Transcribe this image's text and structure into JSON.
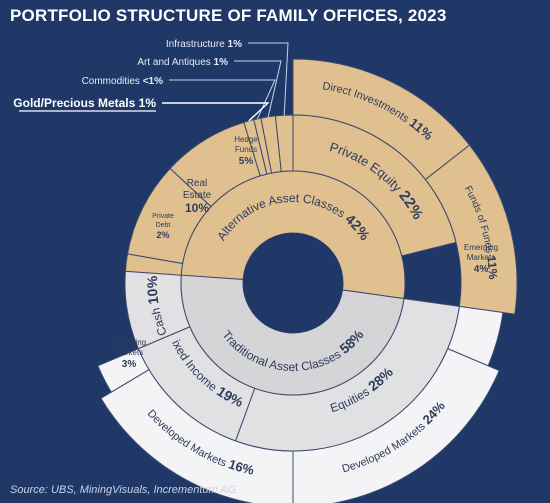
{
  "title": "PORTFOLIO STRUCTURE OF FAMILY OFFICES, 2023",
  "source": "Source: UBS, MiningVisuals, Incrementum AG",
  "colors": {
    "alternative": "#e0c08e",
    "traditional_inner": "#d5d5d7",
    "traditional_mid": "#e1e1e3",
    "traditional_outer": "#f4f4f6",
    "background": "#1f3868",
    "label_text": "#2f3c5c",
    "highlight": "#ffffff"
  },
  "chart_data": {
    "type": "sunburst",
    "rings": [
      {
        "ring": "inner",
        "segments": [
          {
            "name": "Alternative Asset Classes",
            "value": 42,
            "label": "42%",
            "group": "alternative"
          },
          {
            "name": "Traditional Asset Classes",
            "value": 58,
            "label": "58%",
            "group": "traditional"
          }
        ]
      },
      {
        "ring": "middle",
        "segments": [
          {
            "name": "Private Equity",
            "value": 22,
            "label": "22%",
            "group": "alternative"
          },
          {
            "name": "Traditional:Equities",
            "display": "Equities",
            "value": 28,
            "label": "28%",
            "group": "traditional"
          },
          {
            "name": "Fixed Income",
            "value": 19,
            "label": "19%",
            "group": "traditional"
          },
          {
            "name": "Cash",
            "value": 10,
            "label": "10%",
            "group": "traditional"
          },
          {
            "name": "Private Debt",
            "value": 2,
            "label": "2%",
            "group": "alternative"
          },
          {
            "name": "Real Estate",
            "value": 10,
            "label": "10%",
            "group": "alternative"
          },
          {
            "name": "Hedge Funds",
            "value": 5,
            "label": "5%",
            "group": "alternative"
          },
          {
            "name": "Gold/Precious Metals",
            "value": 1,
            "label": "1%",
            "group": "alternative"
          },
          {
            "name": "Commodities",
            "value": 0.5,
            "label": "<1%",
            "group": "alternative"
          },
          {
            "name": "Art and Antiques",
            "value": 1,
            "label": "1%",
            "group": "alternative"
          },
          {
            "name": "Infrastructure",
            "value": 1,
            "label": "1%",
            "group": "alternative"
          }
        ]
      },
      {
        "ring": "outer",
        "segments": [
          {
            "name": "Direct Investments",
            "value": 11,
            "label": "11%",
            "group": "alternative"
          },
          {
            "name": "Funds of Funds",
            "value": 11,
            "label": "11%",
            "group": "alternative"
          },
          {
            "name": "Emerging Markets (Equities)",
            "display": "Emerging Markets",
            "value": 4,
            "label": "4%",
            "group": "traditional"
          },
          {
            "name": "Developed Markets (Equities)",
            "display": "Developed Markets",
            "value": 24,
            "label": "24%",
            "group": "traditional"
          },
          {
            "name": "Developed Markets (Fixed Income)",
            "display": "Developed Markets",
            "value": 16,
            "label": "16%",
            "group": "traditional"
          },
          {
            "name": "Emerging Markets (Fixed Income)",
            "display": "Emerging Markets",
            "value": 3,
            "label": "3%",
            "group": "traditional"
          }
        ]
      }
    ],
    "callouts": [
      {
        "text": "Infrastructure",
        "value": "1%",
        "bold_underline": false
      },
      {
        "text": "Art and Antiques",
        "value": "1%",
        "bold_underline": false
      },
      {
        "text": "Commodities",
        "value": "<1%",
        "bold_underline": false
      },
      {
        "text": "Gold/Precious Metals",
        "value": "1%",
        "bold_underline": true
      }
    ]
  }
}
